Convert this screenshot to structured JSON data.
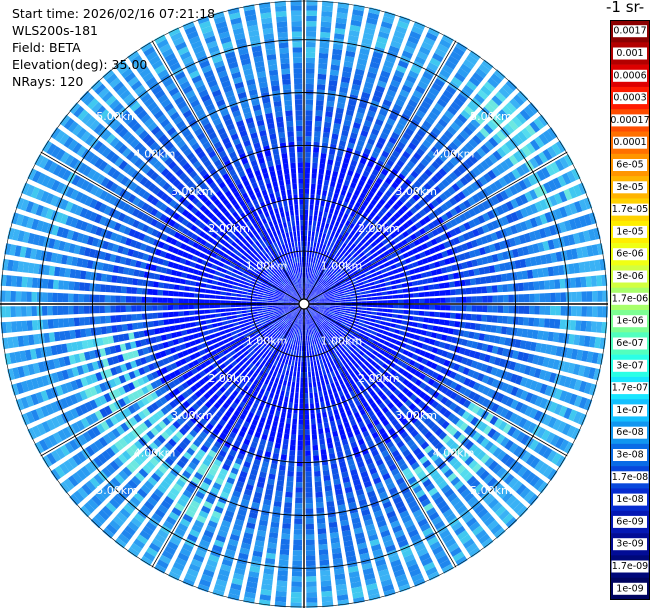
{
  "info": {
    "start_time": "Start time: 2026/02/16 07:21:18",
    "device": "WLS200s-181",
    "field": "Field: BETA",
    "elevation": "Elevation(deg): 35.00",
    "nrays": "NRays: 120"
  },
  "colorbar": {
    "unit_label": "-1 sr-",
    "labels": [
      "0.0017",
      "0.001",
      "0.0006",
      "0.0003",
      "0.00017",
      "0.0001",
      "6e-05",
      "3e-05",
      "1.7e-05",
      "1e-05",
      "6e-06",
      "3e-06",
      "1.7e-06",
      "1e-06",
      "6e-07",
      "3e-07",
      "1.7e-07",
      "1e-07",
      "6e-08",
      "3e-08",
      "1.7e-08",
      "1e-08",
      "6e-09",
      "3e-09",
      "1.7e-09",
      "1e-09"
    ],
    "colors": [
      "#8b0000",
      "#b30000",
      "#dd0000",
      "#ff1a00",
      "#ff4c00",
      "#ff7000",
      "#ff9500",
      "#ffb400",
      "#ffd200",
      "#ffee00",
      "#f0ff14",
      "#d2ff40",
      "#a8ff6a",
      "#7dff93",
      "#52ffbe",
      "#2bffe6",
      "#1ae6ff",
      "#14c0ff",
      "#1096f0",
      "#0a6ce6",
      "#0848dc",
      "#062cd0",
      "#0418b4",
      "#020c96",
      "#00087a",
      "#000460"
    ]
  },
  "chart_data": {
    "type": "heatmap",
    "projection": "polar-ppi",
    "nrays": 120,
    "elevation_deg": 35.0,
    "range_rings_km": [
      1,
      2,
      3,
      4,
      5
    ],
    "ring_labels": [
      "1.00km",
      "2.00km",
      "3.00km",
      "4.00km",
      "5.00km"
    ],
    "max_range_km": 5.75,
    "background_level_range": [
      1e-09,
      1e-07
    ],
    "enhanced_zones": [
      {
        "from_deg": 200,
        "to_deg": 260,
        "range_km": [
          3.2,
          4.5
        ],
        "level": "3e-07"
      },
      {
        "from_deg": 120,
        "to_deg": 150,
        "range_km": [
          3.5,
          4.5
        ],
        "level": "1.7e-07"
      },
      {
        "from_deg": 40,
        "to_deg": 70,
        "range_km": [
          4.6,
          5.4
        ],
        "level": "1e-07"
      }
    ],
    "grid": true
  }
}
